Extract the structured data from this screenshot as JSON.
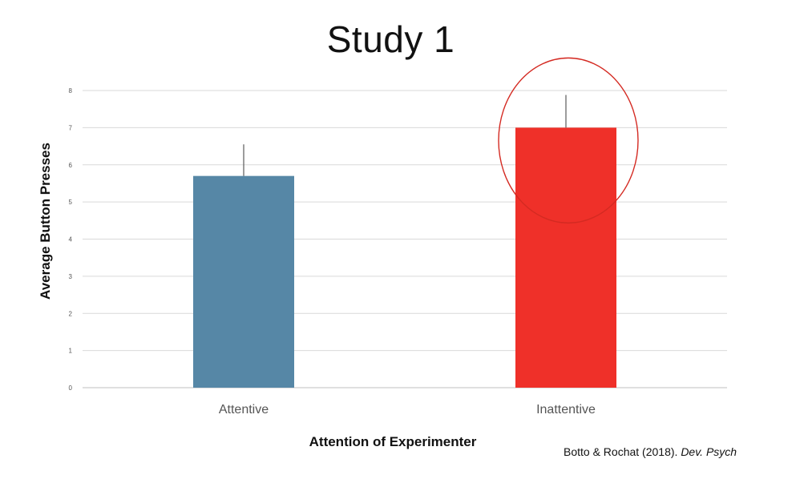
{
  "chart_data": {
    "type": "bar",
    "title": "Study 1",
    "xlabel": "Attention of Experimenter",
    "ylabel": "Average Button Presses",
    "categories": [
      "Attentive",
      "Inattentive"
    ],
    "values": [
      5.7,
      7.0
    ],
    "error_upper": [
      6.55,
      7.88
    ],
    "ylim": [
      0,
      8
    ],
    "yticks": [
      "0",
      "1",
      "2",
      "3",
      "4",
      "5",
      "6",
      "7",
      "8"
    ],
    "grid": true,
    "bar_colors": [
      "#5687a6",
      "#ef3029"
    ],
    "highlight": {
      "category": "Inattentive",
      "color": "#d42a22"
    }
  },
  "citation": {
    "text": "Botto & Rochat (2018). ",
    "journal": "Dev. Psych"
  }
}
